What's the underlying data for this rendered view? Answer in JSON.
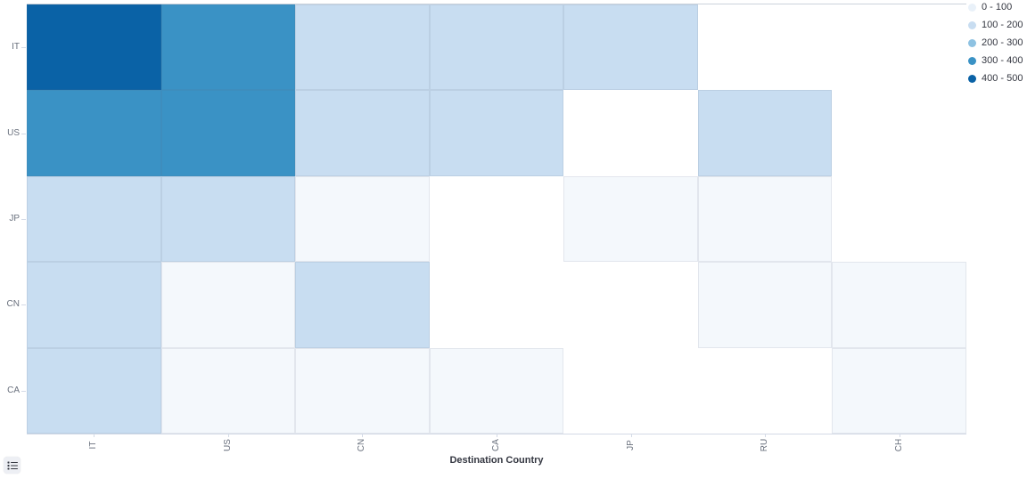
{
  "chart_data": {
    "type": "heatmap",
    "title": "",
    "xlabel": "Destination Country",
    "ylabel": "",
    "x_categories": [
      "IT",
      "US",
      "CN",
      "CA",
      "JP",
      "RU",
      "CH"
    ],
    "y_categories": [
      "IT",
      "US",
      "JP",
      "CN",
      "CA"
    ],
    "legend_position": "top-right",
    "buckets": [
      {
        "label": "0 - 100",
        "range": [
          0,
          100
        ],
        "cell_color": "#f4f8fc",
        "dot_color": "#e9f1f9"
      },
      {
        "label": "100 - 200",
        "range": [
          100,
          200
        ],
        "cell_color": "#c8ddf1",
        "dot_color": "#c8ddf1"
      },
      {
        "label": "200 - 300",
        "range": [
          200,
          300
        ],
        "cell_color": "#8ec2e2",
        "dot_color": "#8ec2e2"
      },
      {
        "label": "300 - 400",
        "range": [
          300,
          400
        ],
        "cell_color": "#3a92c5",
        "dot_color": "#3a92c5"
      },
      {
        "label": "400 - 500",
        "range": [
          400,
          500
        ],
        "cell_color": "#0a62a6",
        "dot_color": "#0a62a6"
      }
    ],
    "cells_note": "bucket index per cell, rows = y_categories top-to-bottom, cols = x_categories left-to-right, null = no data (white)",
    "cells": [
      [
        4,
        3,
        1,
        1,
        1,
        null,
        null
      ],
      [
        3,
        3,
        1,
        1,
        null,
        1,
        null
      ],
      [
        1,
        1,
        0,
        null,
        0,
        0,
        null
      ],
      [
        1,
        0,
        1,
        null,
        null,
        0,
        0
      ],
      [
        1,
        0,
        0,
        0,
        null,
        null,
        0
      ]
    ]
  },
  "ui": {
    "legend_toggle_icon": "list-icon"
  },
  "colors": {
    "axis_text": "#69707d",
    "axis_title_text": "#343741",
    "legend_text": "#343741",
    "axis_line": "#d3dae6"
  }
}
